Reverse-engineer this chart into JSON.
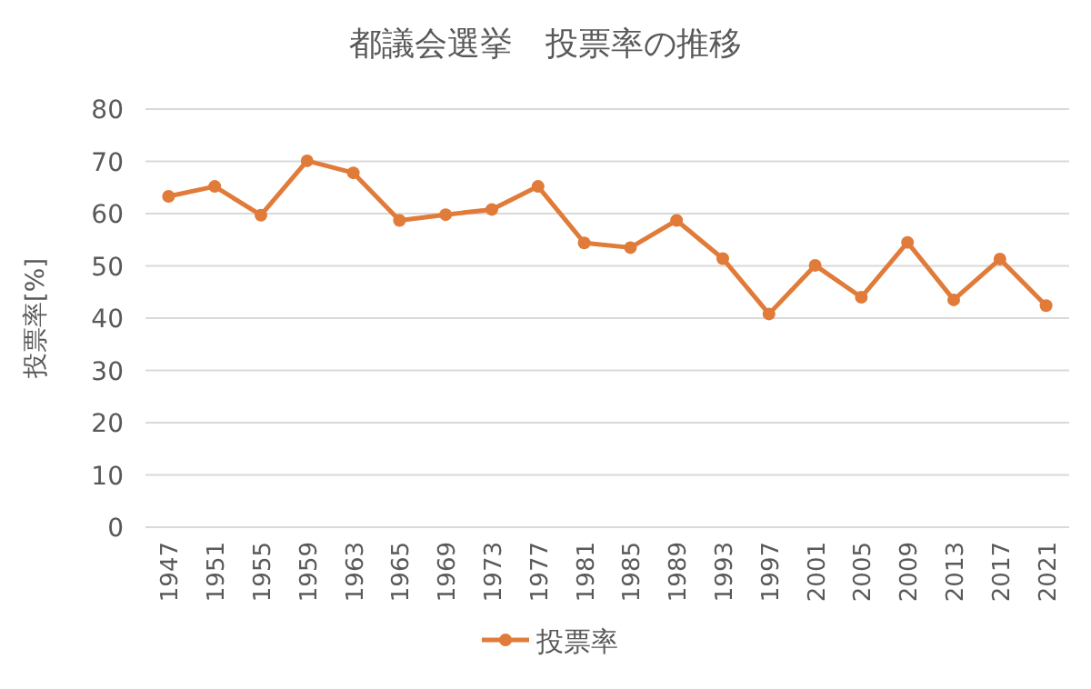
{
  "chart_data": {
    "type": "line",
    "title": "都議会選挙　投票率の推移",
    "ylabel": "投票率[%]",
    "categories": [
      "1947",
      "1951",
      "1955",
      "1959",
      "1963",
      "1965",
      "1969",
      "1973",
      "1977",
      "1981",
      "1985",
      "1989",
      "1993",
      "1997",
      "2001",
      "2005",
      "2009",
      "2013",
      "2017",
      "2021"
    ],
    "series": [
      {
        "name": "投票率",
        "color": "#e07b39",
        "values": [
          63.3,
          65.2,
          59.7,
          70.1,
          67.8,
          58.7,
          59.8,
          60.8,
          65.2,
          54.4,
          53.5,
          58.7,
          51.4,
          40.8,
          50.1,
          44.0,
          54.5,
          43.5,
          51.3,
          42.4
        ]
      }
    ],
    "ylim": [
      0,
      80
    ],
    "yticks": [
      0,
      10,
      20,
      30,
      40,
      50,
      60,
      70,
      80
    ],
    "grid": "y",
    "legend": "bottom",
    "marker": "circle",
    "line_style": "solid"
  }
}
